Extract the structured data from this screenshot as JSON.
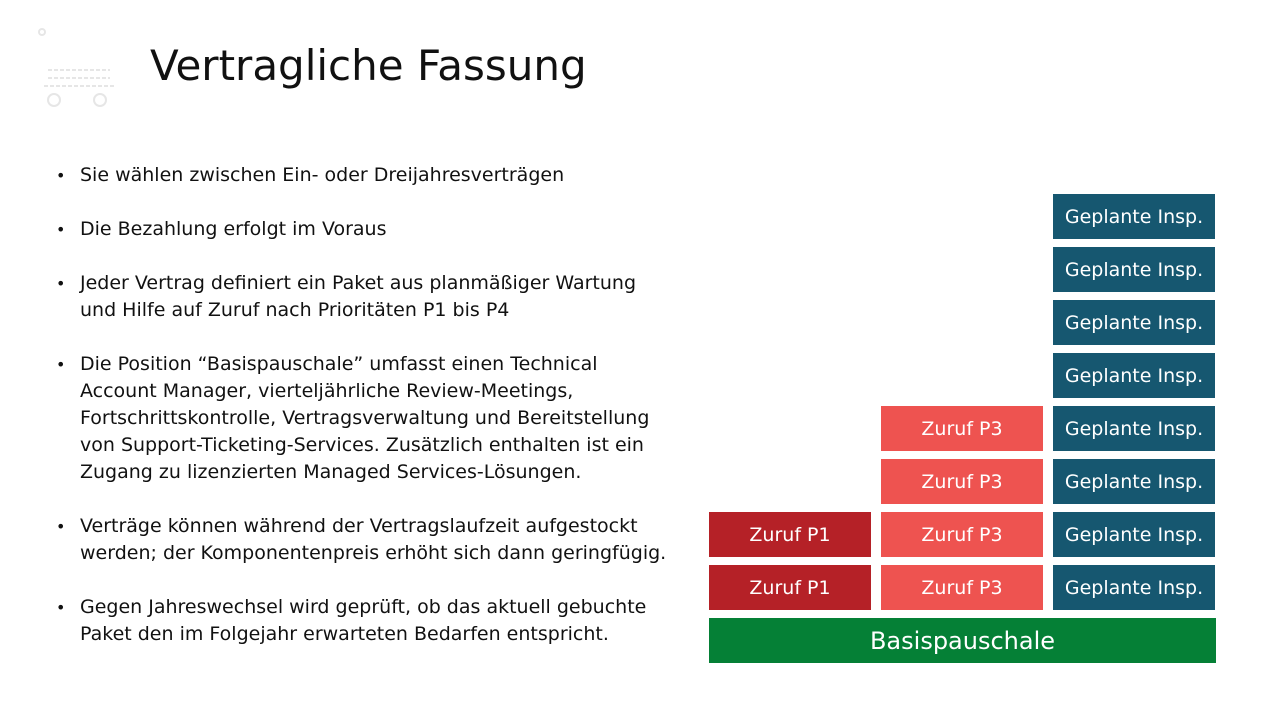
{
  "slide": {
    "title": "Vertragliche Fassung",
    "bullets": [
      "Sie wählen zwischen Ein- oder Dreijahresverträgen",
      "Die Bezahlung erfolgt im Voraus",
      "Jeder Vertrag definiert ein Paket aus planmäßiger Wartung und Hilfe auf Zuruf nach Prioritäten P1 bis P4",
      "Die Position “Basispauschale” umfasst einen Technical Account Manager, vierteljährliche Review-Meetings, Fortschrittskontrolle, Vertragsverwaltung und Bereitstellung von Support-Ticketing-Services. Zusätzlich enthalten ist ein Zugang zu lizenzierten Managed Services-Lösungen.",
      "Verträge können während der Vertragslaufzeit aufgestockt werden; der Komponentenpreis erhöht sich dann geringfügig.",
      "Gegen Jahreswechsel wird geprüft, ob das aktuell gebuchte Paket den im Folgejahr erwarteten Bedarfen entspricht."
    ]
  },
  "diagram": {
    "base_label": "Basispauschale",
    "columns": [
      {
        "label": "Zuruf P1",
        "count": 2,
        "color": "#b52127"
      },
      {
        "label": "Zuruf P3",
        "count": 4,
        "color": "#ee5350"
      },
      {
        "label": "Geplante Insp.",
        "count": 8,
        "color": "#165770"
      }
    ],
    "base_color": "#058036"
  }
}
